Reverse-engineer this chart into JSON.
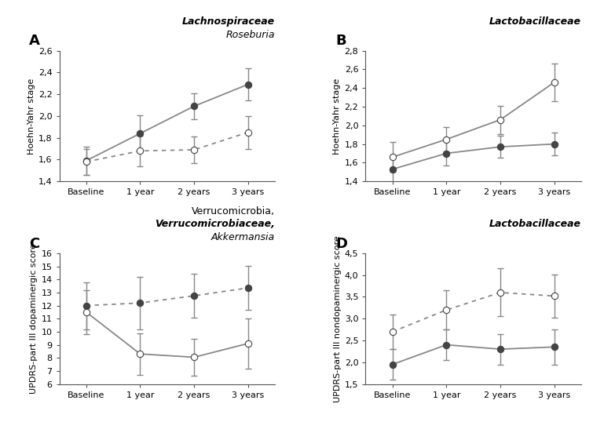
{
  "A": {
    "title_bold": "Lachnospiraceae",
    "title_italic": "Roseburia",
    "ylabel": "Hoehn-Yahr stage",
    "ylim": [
      1.4,
      2.6
    ],
    "yticks": [
      1.4,
      1.6,
      1.8,
      2.0,
      2.2,
      2.4,
      2.6
    ],
    "ytick_labels": [
      "1,4",
      "1,6",
      "1,8",
      "2,0",
      "2,2",
      "2,4",
      "2,6"
    ],
    "xticks": [
      "Baseline",
      "1 year",
      "2 years",
      "3 years"
    ],
    "series1": {
      "values": [
        1.59,
        1.84,
        2.09,
        2.29
      ],
      "errors": [
        0.13,
        0.17,
        0.12,
        0.15
      ],
      "marker": "filled",
      "line": "solid"
    },
    "series2": {
      "values": [
        1.58,
        1.68,
        1.69,
        1.85
      ],
      "errors": [
        0.12,
        0.14,
        0.12,
        0.15
      ],
      "marker": "open",
      "line": "dotted"
    }
  },
  "B": {
    "title_bold": "Lactobacillaceae",
    "title_italic": "",
    "ylabel": "Hoehn-Yahr stage",
    "ylim": [
      1.4,
      2.8
    ],
    "yticks": [
      1.4,
      1.6,
      1.8,
      2.0,
      2.2,
      2.4,
      2.6,
      2.8
    ],
    "ytick_labels": [
      "1,4",
      "1,6",
      "1,8",
      "2,0",
      "2,2",
      "2,4",
      "2,6",
      "2,8"
    ],
    "xticks": [
      "Baseline",
      "1 year",
      "2 years",
      "3 years"
    ],
    "series1": {
      "values": [
        1.53,
        1.7,
        1.77,
        1.8
      ],
      "errors": [
        0.14,
        0.13,
        0.12,
        0.12
      ],
      "marker": "filled",
      "line": "solid"
    },
    "series2": {
      "values": [
        1.66,
        1.85,
        2.06,
        2.46
      ],
      "errors": [
        0.16,
        0.13,
        0.15,
        0.2
      ],
      "marker": "open",
      "line": "solid"
    }
  },
  "C": {
    "title_line1": "Verrucomicrobia,",
    "title_line2_bold": "Verrucomicrobiaceae,",
    "title_line3_italic": "Akkermansia",
    "ylabel": "UPDRS-part III dopaminergic score",
    "ylim": [
      6,
      16
    ],
    "yticks": [
      6,
      7,
      8,
      9,
      10,
      11,
      12,
      13,
      14,
      15,
      16
    ],
    "ytick_labels": [
      "6",
      "7",
      "8",
      "9",
      "10",
      "11",
      "12",
      "13",
      "14",
      "15",
      "16"
    ],
    "xticks": [
      "Baseline",
      "1 year",
      "2 years",
      "3 years"
    ],
    "series1": {
      "values": [
        12.0,
        12.2,
        12.75,
        13.35
      ],
      "errors": [
        1.8,
        2.0,
        1.7,
        1.7
      ],
      "marker": "filled",
      "line": "dotted"
    },
    "series2": {
      "values": [
        11.5,
        8.3,
        8.05,
        9.1
      ],
      "errors": [
        1.7,
        1.6,
        1.4,
        1.9
      ],
      "marker": "open",
      "line": "solid"
    }
  },
  "D": {
    "title_bold": "Lactobacillaceae",
    "title_italic": "",
    "ylabel": "UPDRS-part III nondopaminergic score",
    "ylim": [
      1.5,
      4.5
    ],
    "yticks": [
      1.5,
      2.0,
      2.5,
      3.0,
      3.5,
      4.0,
      4.5
    ],
    "ytick_labels": [
      "1,5",
      "2,0",
      "2,5",
      "3,0",
      "3,5",
      "4,0",
      "4,5"
    ],
    "xticks": [
      "Baseline",
      "1 year",
      "2 years",
      "3 years"
    ],
    "series1": {
      "values": [
        1.95,
        2.4,
        2.3,
        2.35
      ],
      "errors": [
        0.35,
        0.35,
        0.35,
        0.4
      ],
      "marker": "filled",
      "line": "solid"
    },
    "series2": {
      "values": [
        2.7,
        3.2,
        3.6,
        3.52
      ],
      "errors": [
        0.4,
        0.45,
        0.55,
        0.5
      ],
      "marker": "open",
      "line": "dotted"
    }
  },
  "line_color": "#888888",
  "marker_filled_color": "#444444",
  "marker_open_color": "white",
  "marker_edge_color": "#444444",
  "marker_size": 6,
  "line_width": 1.3,
  "capsize": 3,
  "error_linewidth": 1.0,
  "tick_fontsize": 8,
  "label_fontsize": 8,
  "title_fontsize": 9
}
